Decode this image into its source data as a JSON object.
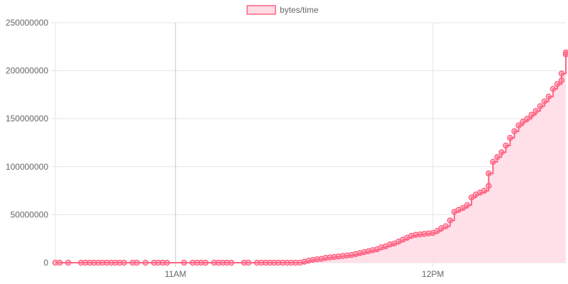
{
  "chart_data": {
    "type": "area",
    "title": "",
    "xlabel": "",
    "ylabel": "",
    "legend": {
      "position": "top",
      "label": "bytes/time"
    },
    "colors": {
      "line": "#ff6384",
      "fill": "#ffdde5",
      "point": "#ff6384"
    },
    "grid": true,
    "x_range": [
      "10:32",
      "12:31"
    ],
    "ylim": [
      0,
      250000000
    ],
    "y_ticks": [
      0,
      50000000,
      100000000,
      150000000,
      200000000,
      250000000
    ],
    "y_tick_labels": [
      "0",
      "50000000",
      "100000000",
      "150000000",
      "200000000",
      "250000000"
    ],
    "x_ticks": [
      "11:00",
      "12:00"
    ],
    "x_tick_labels": [
      "11AM",
      "12PM"
    ],
    "series": [
      {
        "name": "bytes/time",
        "points": [
          [
            "10:32",
            0
          ],
          [
            "10:33",
            0
          ],
          [
            "10:35",
            0
          ],
          [
            "10:38",
            0
          ],
          [
            "10:39",
            0
          ],
          [
            "10:40",
            0
          ],
          [
            "10:41",
            0
          ],
          [
            "10:42",
            0
          ],
          [
            "10:43",
            0
          ],
          [
            "10:44",
            0
          ],
          [
            "10:45",
            0
          ],
          [
            "10:46",
            0
          ],
          [
            "10:47",
            0
          ],
          [
            "10:48",
            0
          ],
          [
            "10:50",
            0
          ],
          [
            "10:51",
            0
          ],
          [
            "10:53",
            0
          ],
          [
            "10:55",
            0
          ],
          [
            "10:56",
            0
          ],
          [
            "10:57",
            0
          ],
          [
            "10:58",
            0
          ],
          [
            "11:02",
            0
          ],
          [
            "11:04",
            0
          ],
          [
            "11:05",
            0
          ],
          [
            "11:06",
            0
          ],
          [
            "11:07",
            0
          ],
          [
            "11:09",
            0
          ],
          [
            "11:10",
            0
          ],
          [
            "11:11",
            0
          ],
          [
            "11:12",
            0
          ],
          [
            "11:13",
            0
          ],
          [
            "11:16",
            0
          ],
          [
            "11:17",
            0
          ],
          [
            "11:19",
            0
          ],
          [
            "11:20",
            0
          ],
          [
            "11:21",
            0
          ],
          [
            "11:22",
            0
          ],
          [
            "11:23",
            0
          ],
          [
            "11:24",
            0
          ],
          [
            "11:25",
            0
          ],
          [
            "11:26",
            0
          ],
          [
            "11:27",
            0
          ],
          [
            "11:28",
            0
          ],
          [
            "11:29",
            0
          ],
          [
            "11:30",
            1000000
          ],
          [
            "11:31",
            2000000
          ],
          [
            "11:32",
            3000000
          ],
          [
            "11:33",
            3500000
          ],
          [
            "11:34",
            4000000
          ],
          [
            "11:35",
            5000000
          ],
          [
            "11:36",
            5500000
          ],
          [
            "11:37",
            6000000
          ],
          [
            "11:38",
            6500000
          ],
          [
            "11:39",
            7000000
          ],
          [
            "11:40",
            7500000
          ],
          [
            "11:41",
            8000000
          ],
          [
            "11:42",
            9000000
          ],
          [
            "11:43",
            10000000
          ],
          [
            "11:44",
            11000000
          ],
          [
            "11:45",
            12000000
          ],
          [
            "11:46",
            13000000
          ],
          [
            "11:47",
            14000000
          ],
          [
            "11:48",
            16000000
          ],
          [
            "11:49",
            17000000
          ],
          [
            "11:50",
            19000000
          ],
          [
            "11:51",
            20000000
          ],
          [
            "11:52",
            22000000
          ],
          [
            "11:53",
            24000000
          ],
          [
            "11:54",
            26000000
          ],
          [
            "11:55",
            28000000
          ],
          [
            "11:56",
            29000000
          ],
          [
            "11:57",
            29500000
          ],
          [
            "11:58",
            30000000
          ],
          [
            "11:59",
            30500000
          ],
          [
            "12:00",
            31000000
          ],
          [
            "12:01",
            33000000
          ],
          [
            "12:02",
            36000000
          ],
          [
            "12:03",
            38000000
          ],
          [
            "12:04",
            44000000
          ],
          [
            "12:05",
            53000000
          ],
          [
            "12:06",
            55000000
          ],
          [
            "12:07",
            57000000
          ],
          [
            "12:08",
            60000000
          ],
          [
            "12:09",
            68000000
          ],
          [
            "12:10",
            71000000
          ],
          [
            "12:11",
            73000000
          ],
          [
            "12:12",
            75000000
          ],
          [
            "12:13",
            80000000
          ],
          [
            "12:13",
            93000000
          ],
          [
            "12:14",
            105000000
          ],
          [
            "12:15",
            110000000
          ],
          [
            "12:16",
            115000000
          ],
          [
            "12:17",
            122000000
          ],
          [
            "12:18",
            130000000
          ],
          [
            "12:19",
            137000000
          ],
          [
            "12:20",
            143000000
          ],
          [
            "12:21",
            147000000
          ],
          [
            "12:22",
            150000000
          ],
          [
            "12:23",
            154000000
          ],
          [
            "12:24",
            158000000
          ],
          [
            "12:25",
            163000000
          ],
          [
            "12:26",
            168000000
          ],
          [
            "12:27",
            173000000
          ],
          [
            "12:28",
            181000000
          ],
          [
            "12:29",
            186000000
          ],
          [
            "12:30",
            190000000
          ],
          [
            "12:30",
            197000000
          ],
          [
            "12:31",
            217000000
          ],
          [
            "12:31",
            219000000
          ]
        ]
      }
    ]
  }
}
